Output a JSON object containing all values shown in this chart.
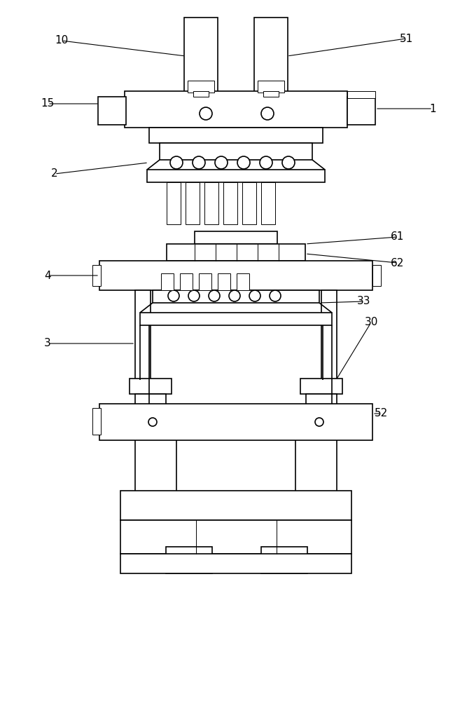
{
  "bg_color": "#ffffff",
  "line_color": "#000000",
  "lw": 1.2,
  "tlw": 0.7,
  "fig_width": 6.77,
  "fig_height": 10.0
}
